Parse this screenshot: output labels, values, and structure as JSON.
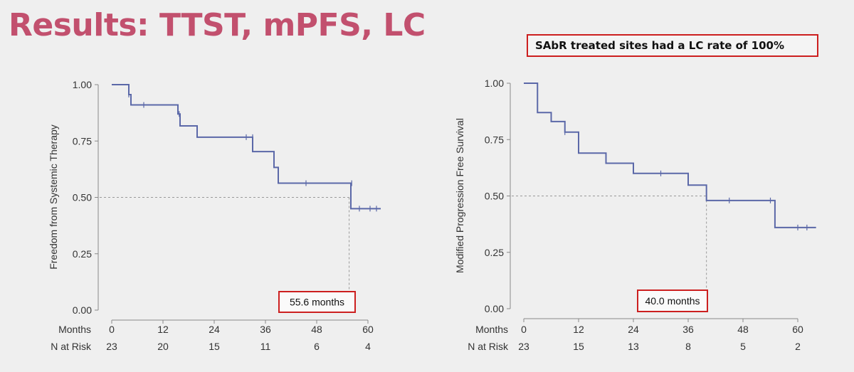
{
  "title": "Results: TTST, mPFS, LC",
  "callout": "SAbR treated sites had a LC rate of 100%",
  "chart_data": [
    {
      "type": "line",
      "subtype": "kaplan-meier",
      "ylabel": "Freedom from Systemic Therapy",
      "x_row_label": "Months",
      "risk_row_label": "N at Risk",
      "xticks": [
        0,
        12,
        24,
        36,
        48,
        60
      ],
      "xtick_labels": [
        "0",
        "12",
        "24",
        "36",
        "48",
        "60"
      ],
      "yticks": [
        0,
        0.25,
        0.5,
        0.75,
        1.0
      ],
      "ytick_labels": [
        "0.00",
        "0.25",
        "0.50",
        "0.75",
        "1.00"
      ],
      "xlim": [
        -2,
        64
      ],
      "ylim": [
        0,
        1.0
      ],
      "n_at_risk": [
        "23",
        "20",
        "15",
        "11",
        "6",
        "4"
      ],
      "steps": [
        [
          0,
          1.0
        ],
        [
          4,
          0.956
        ],
        [
          4.5,
          0.91
        ],
        [
          15.5,
          0.87
        ],
        [
          16,
          0.817
        ],
        [
          20,
          0.767
        ],
        [
          30.5,
          0.767
        ],
        [
          33,
          0.703
        ],
        [
          38,
          0.633
        ],
        [
          39,
          0.563
        ],
        [
          56,
          0.45
        ],
        [
          63,
          0.45
        ]
      ],
      "censored": [
        [
          4,
          0.956
        ],
        [
          7.5,
          0.91
        ],
        [
          15.8,
          0.87
        ],
        [
          31.5,
          0.767
        ],
        [
          33,
          0.767
        ],
        [
          45.5,
          0.563
        ],
        [
          56.2,
          0.563
        ],
        [
          58,
          0.45
        ],
        [
          60.5,
          0.45
        ],
        [
          62,
          0.45
        ]
      ],
      "median_x": 55.6,
      "median_label": "55.6 months",
      "grid": false,
      "reference_y": 0.5
    },
    {
      "type": "line",
      "subtype": "kaplan-meier",
      "ylabel": "Modified Progression Free Survival",
      "x_row_label": "Months",
      "risk_row_label": "N at Risk",
      "xticks": [
        0,
        12,
        24,
        36,
        48,
        60
      ],
      "xtick_labels": [
        "0",
        "12",
        "24",
        "36",
        "48",
        "60"
      ],
      "yticks": [
        0,
        0.25,
        0.5,
        0.75,
        1.0
      ],
      "ytick_labels": [
        "0.00",
        "0.25",
        "0.50",
        "0.75",
        "1.00"
      ],
      "xlim": [
        -2,
        64
      ],
      "ylim": [
        0,
        1.0
      ],
      "n_at_risk": [
        "23",
        "15",
        "13",
        "8",
        "5",
        "2"
      ],
      "steps": [
        [
          0,
          1.0
        ],
        [
          3,
          0.87
        ],
        [
          6,
          0.83
        ],
        [
          9,
          0.783
        ],
        [
          12,
          0.69
        ],
        [
          18,
          0.645
        ],
        [
          24,
          0.6
        ],
        [
          36,
          0.548
        ],
        [
          40,
          0.48
        ],
        [
          55,
          0.36
        ],
        [
          64,
          0.36
        ]
      ],
      "censored": [
        [
          9,
          0.783
        ],
        [
          30,
          0.6
        ],
        [
          45,
          0.48
        ],
        [
          54,
          0.48
        ],
        [
          60,
          0.36
        ],
        [
          62,
          0.36
        ]
      ],
      "median_x": 40.0,
      "median_label": "40.0 months",
      "grid": false,
      "reference_y": 0.5
    }
  ]
}
